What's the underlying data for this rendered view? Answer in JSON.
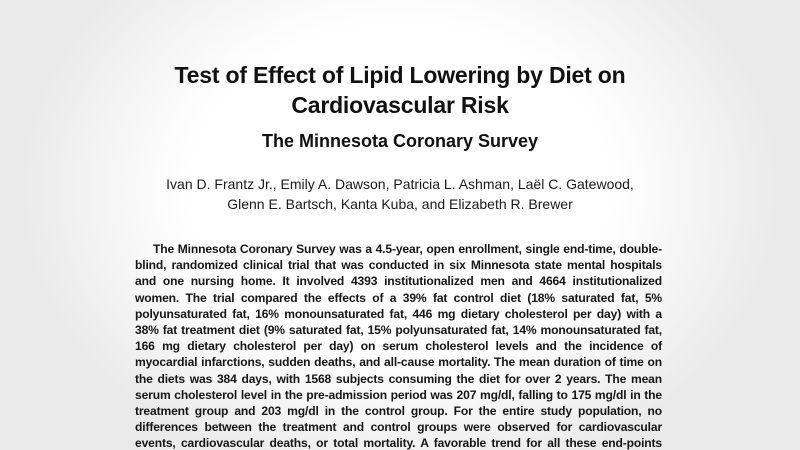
{
  "paper": {
    "title_line1": "Test of Effect of Lipid Lowering by Diet on",
    "title_line2": "Cardiovascular Risk",
    "subtitle": "The Minnesota Coronary Survey",
    "authors_line1": "Ivan D. Frantz Jr., Emily A. Dawson, Patricia L. Ashman, Laël C. Gatewood,",
    "authors_line2": "Glenn E. Bartsch, Kanta Kuba, and Elizabeth R. Brewer",
    "abstract": "The Minnesota Coronary Survey was a 4.5-year, open enrollment, single end-time, double-blind, randomized clinical trial that was conducted in six Minnesota state mental hospitals and one nursing home. It involved 4393 institutionalized men and 4664 institutionalized women. The trial compared the effects of a 39% fat control diet (18% saturated fat, 5% polyunsaturated fat, 16% monounsaturated fat, 446 mg dietary cholesterol per day) with a 38% fat treatment diet (9% saturated fat, 15% polyunsaturated fat, 14% monounsaturated fat, 166 mg dietary cholesterol per day) on serum cholesterol levels and the incidence of myocardial infarctions, sudden deaths, and all-cause mortality. The mean duration of time on the diets was 384 days, with 1568 subjects consuming the diet for over 2 years. The mean serum cholesterol level in the pre-admission period was 207 mg/dl, falling to 175 mg/dl in the treatment group and 203 mg/dl in the control group. For the entire study population, no differences between the treatment and control groups were observed for cardiovascular events, cardiovascular deaths, or total mortality. A favorable trend for all these end-points occurred in some younger age groups."
  }
}
